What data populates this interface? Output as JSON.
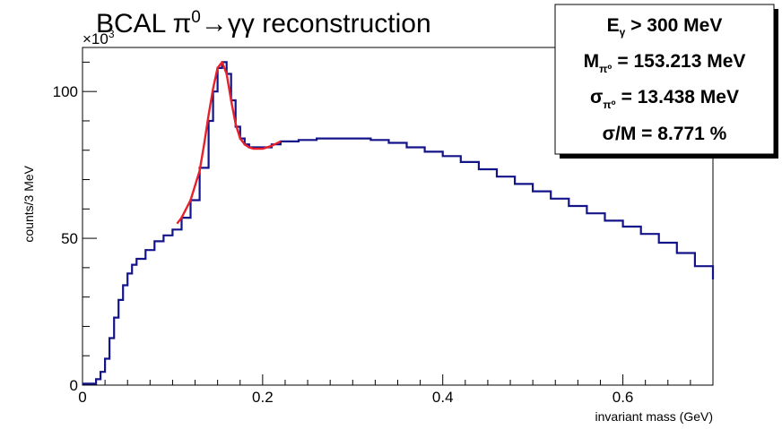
{
  "chart_data": {
    "type": "line",
    "title": "BCAL π⁰→γγ reconstruction",
    "title_main": "BCAL π",
    "title_sup": "0",
    "title_rest": "→γγ reconstruction",
    "exponent_label": "×10",
    "exponent_power": "3",
    "xlabel": "invariant mass (GeV)",
    "ylabel": "counts/3 MeV",
    "xlim": [
      0,
      0.7
    ],
    "ylim": [
      0,
      115
    ],
    "x_ticks": [
      0,
      0.2,
      0.4,
      0.6
    ],
    "x_tick_labels": [
      "0",
      "0.2",
      "0.4",
      "0.6"
    ],
    "y_ticks": [
      0,
      50,
      100
    ],
    "y_tick_labels": [
      "0",
      "50",
      "100"
    ],
    "grid": false,
    "series": [
      {
        "style": "histogram",
        "color": "#14148a",
        "x": [
          0,
          0.015,
          0.02,
          0.025,
          0.03,
          0.035,
          0.04,
          0.045,
          0.05,
          0.055,
          0.06,
          0.07,
          0.08,
          0.09,
          0.1,
          0.11,
          0.12,
          0.13,
          0.14,
          0.145,
          0.15,
          0.155,
          0.16,
          0.165,
          0.17,
          0.175,
          0.18,
          0.185,
          0.19,
          0.2,
          0.21,
          0.22,
          0.24,
          0.26,
          0.28,
          0.3,
          0.32,
          0.34,
          0.36,
          0.38,
          0.4,
          0.42,
          0.44,
          0.46,
          0.48,
          0.5,
          0.52,
          0.54,
          0.56,
          0.58,
          0.6,
          0.62,
          0.64,
          0.66,
          0.68,
          0.7
        ],
        "y": [
          0.5,
          2,
          4.5,
          9,
          16,
          23,
          29,
          34,
          38,
          41,
          43,
          46,
          49,
          51,
          53,
          57,
          63,
          74,
          90,
          100,
          108,
          110,
          106,
          97,
          88,
          84,
          82,
          81,
          81,
          81,
          82,
          83,
          83.5,
          84,
          84,
          84,
          83.5,
          82.5,
          81,
          79.5,
          78,
          76,
          73.5,
          71,
          68.5,
          66,
          63.5,
          61,
          58.5,
          56,
          54,
          51.5,
          48.5,
          45,
          40.5,
          36
        ]
      },
      {
        "style": "fit",
        "color": "#e8202a",
        "x": [
          0.105,
          0.11,
          0.12,
          0.13,
          0.135,
          0.14,
          0.145,
          0.15,
          0.155,
          0.16,
          0.165,
          0.17,
          0.175,
          0.18,
          0.185,
          0.19,
          0.2,
          0.21,
          0.22
        ],
        "y": [
          55,
          57,
          63,
          73,
          82,
          92,
          101,
          108,
          110,
          106,
          97,
          89,
          84,
          82,
          81,
          80.5,
          80.5,
          81.5,
          83
        ]
      }
    ]
  },
  "stats_box": {
    "line1_main": "E",
    "line1_sub": "γ",
    "line1_rest": " > 300 MeV",
    "line2_main": "M",
    "line2_sub": "π⁰",
    "line2_rest": " = 153.213 MeV",
    "line3_main": "σ",
    "line3_sub": "π⁰",
    "line3_rest": " = 13.438 MeV",
    "line4": "σ/M = 8.771 %"
  }
}
